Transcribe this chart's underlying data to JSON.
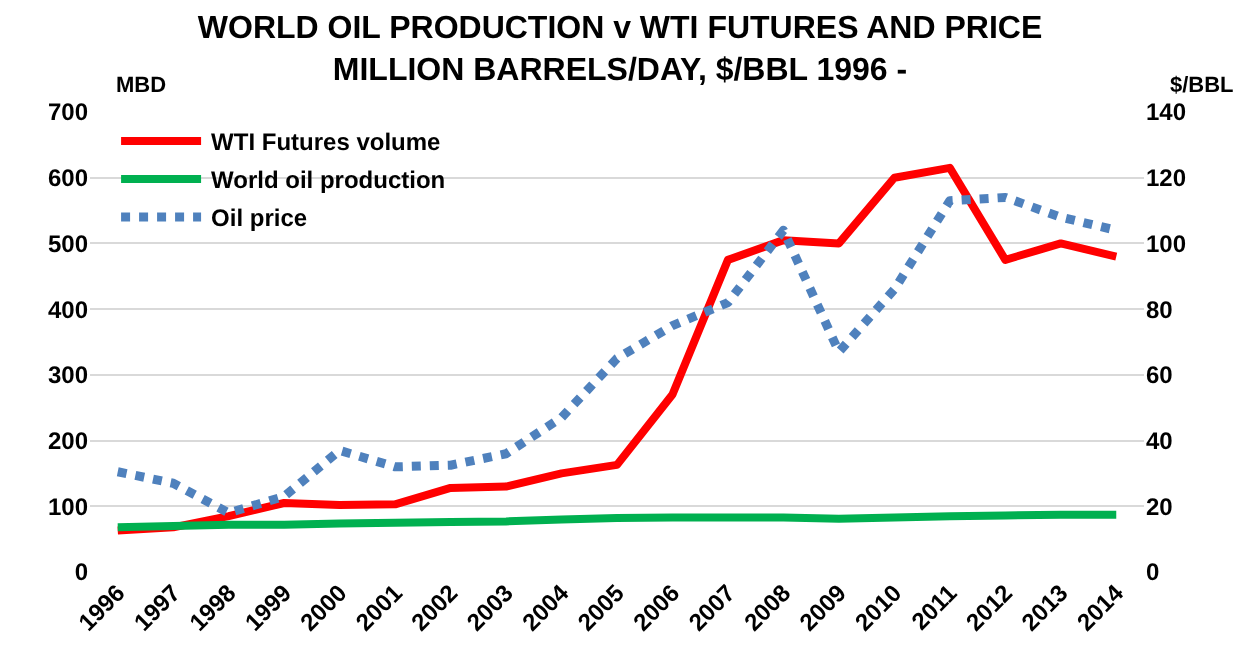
{
  "chart_data": {
    "type": "line",
    "title": "WORLD OIL PRODUCTION v WTI FUTURES AND PRICE",
    "subtitle": "MILLION BARRELS/DAY, $/BBL 1996 -",
    "ylabel": "MBD",
    "y2label": "$/BBL",
    "categories": [
      "1996",
      "1997",
      "1998",
      "1999",
      "2000",
      "2001",
      "2002",
      "2003",
      "2004",
      "2005",
      "2006",
      "2007",
      "2008",
      "2009",
      "2010",
      "2011",
      "2012",
      "2013",
      "2014"
    ],
    "series": [
      {
        "name": "WTI Futures volume",
        "color": "#ff0000",
        "line_style": "solid",
        "values": [
          63,
          68,
          85,
          105,
          102,
          103,
          128,
          130,
          150,
          163,
          270,
          475,
          505,
          500,
          600,
          615,
          475,
          500,
          480
        ]
      },
      {
        "name": "World oil production",
        "color": "#00b050",
        "line_style": "solid",
        "values": [
          68,
          70,
          72,
          72,
          74,
          75,
          76,
          77,
          80,
          82,
          83,
          83,
          83,
          81,
          83,
          85,
          86,
          87,
          87
        ]
      },
      {
        "name": "Oil price",
        "color": "#4f81bd",
        "line_style": "dotted",
        "axis": "y2",
        "values": [
          30.5,
          27,
          18,
          23,
          37,
          32,
          32.5,
          36,
          47,
          65,
          75,
          82,
          104,
          67,
          86,
          113,
          114,
          108,
          104
        ]
      }
    ],
    "ylim": [
      0,
      700
    ],
    "yticks": [
      0,
      100,
      200,
      300,
      400,
      500,
      600,
      700
    ],
    "y2lim": [
      0,
      140
    ],
    "y2ticks": [
      0,
      20,
      40,
      60,
      80,
      100,
      120,
      140
    ],
    "grid": "y",
    "legend": "top left",
    "marker": "none"
  }
}
